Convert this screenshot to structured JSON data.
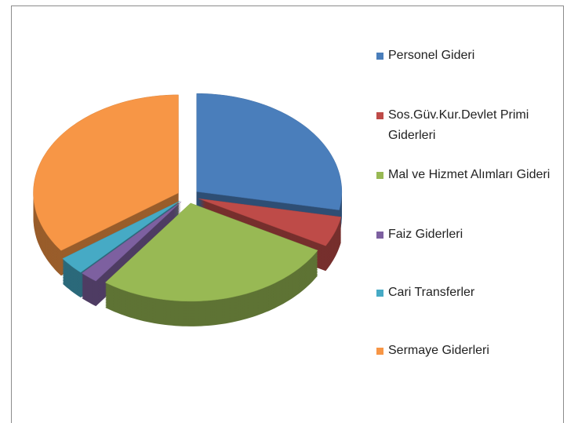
{
  "chart_data": {
    "type": "pie3d",
    "categories": [
      "Personel Gideri",
      "Sos.Güv.Kur.Devlet Primi Giderleri",
      "Mal ve Hizmet Alımları Gideri",
      "Faiz Giderleri",
      "Cari Transferler",
      "Sermaye Giderleri"
    ],
    "values": [
      28,
      5,
      27,
      2,
      3,
      35
    ],
    "colors": [
      "#4a7ebb",
      "#be4b48",
      "#98b954",
      "#7d60a0",
      "#46aac5",
      "#f79646"
    ],
    "legend": "right"
  }
}
